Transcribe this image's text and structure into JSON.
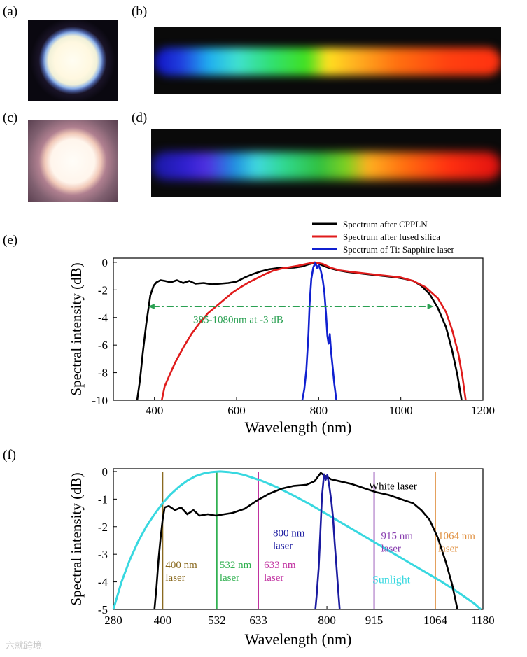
{
  "panels": {
    "a": "(a)",
    "b": "(b)",
    "c": "(c)",
    "d": "(d)",
    "e": "(e)",
    "f": "(f)"
  },
  "colors": {
    "cpp": "#000000",
    "fused": "#e01b1b",
    "ti": "#1020d0",
    "arrow": "#2aa052",
    "sun": "#38d8e0",
    "l400": "#8a6a20",
    "l532": "#30b050",
    "l633": "#c030a0",
    "l800": "#1a1aa0",
    "l915": "#8a40b0",
    "l1064": "#e09040"
  },
  "chart_data": [
    {
      "type": "line",
      "title": "",
      "xlabel": "Wavelength (nm)",
      "ylabel": "Spectral intensity (dB)",
      "xlim": [
        300,
        1200
      ],
      "ylim": [
        -10,
        0.3
      ],
      "xticks": [
        400,
        600,
        800,
        1000,
        1200
      ],
      "xtick_labels": [
        "400",
        "600",
        "800",
        "1000",
        "1200"
      ],
      "yticks": [
        0,
        -2,
        -4,
        -6,
        -8,
        -10
      ],
      "ytick_labels": [
        "0",
        "-2",
        "-4",
        "-6",
        "-8",
        "-10"
      ],
      "legend": [
        "Spectrum after  CPPLN",
        "Spectrum after fused silica",
        "Spectrum of Ti: Sapphire laser"
      ],
      "annotation": "385-1080nm at -3 dB",
      "arrow": {
        "x1": 385,
        "x2": 1080,
        "y": -3.2
      },
      "series": [
        {
          "name": "Spectrum after  CPPLN",
          "color_key": "cpp",
          "points": [
            [
              358,
              -10
            ],
            [
              365,
              -8.5
            ],
            [
              372,
              -6.5
            ],
            [
              380,
              -4.5
            ],
            [
              390,
              -2.4
            ],
            [
              398,
              -1.7
            ],
            [
              405,
              -1.45
            ],
            [
              415,
              -1.3
            ],
            [
              425,
              -1.35
            ],
            [
              440,
              -1.45
            ],
            [
              455,
              -1.3
            ],
            [
              470,
              -1.5
            ],
            [
              485,
              -1.35
            ],
            [
              500,
              -1.55
            ],
            [
              520,
              -1.5
            ],
            [
              540,
              -1.6
            ],
            [
              560,
              -1.55
            ],
            [
              580,
              -1.5
            ],
            [
              600,
              -1.4
            ],
            [
              620,
              -1.1
            ],
            [
              640,
              -0.85
            ],
            [
              660,
              -0.65
            ],
            [
              680,
              -0.5
            ],
            [
              700,
              -0.42
            ],
            [
              720,
              -0.4
            ],
            [
              740,
              -0.38
            ],
            [
              760,
              -0.3
            ],
            [
              775,
              -0.15
            ],
            [
              790,
              -0.05
            ],
            [
              800,
              -0.1
            ],
            [
              815,
              -0.3
            ],
            [
              830,
              -0.45
            ],
            [
              850,
              -0.6
            ],
            [
              870,
              -0.7
            ],
            [
              900,
              -0.8
            ],
            [
              930,
              -0.9
            ],
            [
              960,
              -1.0
            ],
            [
              990,
              -1.1
            ],
            [
              1010,
              -1.2
            ],
            [
              1030,
              -1.35
            ],
            [
              1050,
              -1.7
            ],
            [
              1070,
              -2.3
            ],
            [
              1090,
              -3.3
            ],
            [
              1110,
              -4.7
            ],
            [
              1125,
              -6.4
            ],
            [
              1138,
              -8.2
            ],
            [
              1148,
              -10
            ]
          ]
        },
        {
          "name": "Spectrum after fused silica",
          "color_key": "fused",
          "points": [
            [
              418,
              -10
            ],
            [
              425,
              -9.0
            ],
            [
              435,
              -8.3
            ],
            [
              450,
              -7.3
            ],
            [
              470,
              -6.2
            ],
            [
              490,
              -5.2
            ],
            [
              510,
              -4.4
            ],
            [
              530,
              -3.7
            ],
            [
              550,
              -3.2
            ],
            [
              570,
              -2.7
            ],
            [
              590,
              -2.2
            ],
            [
              610,
              -1.8
            ],
            [
              630,
              -1.45
            ],
            [
              650,
              -1.15
            ],
            [
              670,
              -0.85
            ],
            [
              690,
              -0.6
            ],
            [
              710,
              -0.45
            ],
            [
              730,
              -0.35
            ],
            [
              750,
              -0.25
            ],
            [
              770,
              -0.12
            ],
            [
              790,
              0.0
            ],
            [
              810,
              -0.12
            ],
            [
              830,
              -0.4
            ],
            [
              850,
              -0.58
            ],
            [
              880,
              -0.7
            ],
            [
              910,
              -0.8
            ],
            [
              940,
              -0.9
            ],
            [
              970,
              -1.0
            ],
            [
              1000,
              -1.1
            ],
            [
              1030,
              -1.35
            ],
            [
              1060,
              -1.8
            ],
            [
              1090,
              -2.6
            ],
            [
              1110,
              -3.6
            ],
            [
              1125,
              -4.9
            ],
            [
              1140,
              -6.6
            ],
            [
              1150,
              -8.3
            ],
            [
              1158,
              -10
            ]
          ]
        },
        {
          "name": "Spectrum of Ti: Sapphire laser",
          "color_key": "ti",
          "points": [
            [
              760,
              -10
            ],
            [
              765,
              -9.2
            ],
            [
              770,
              -7.8
            ],
            [
              775,
              -5.2
            ],
            [
              778,
              -3.0
            ],
            [
              782,
              -1.2
            ],
            [
              787,
              -0.35
            ],
            [
              792,
              -0.05
            ],
            [
              796,
              -0.4
            ],
            [
              800,
              -0.2
            ],
            [
              805,
              -0.6
            ],
            [
              810,
              -1.3
            ],
            [
              814,
              -2.2
            ],
            [
              818,
              -3.8
            ],
            [
              821,
              -5.3
            ],
            [
              824,
              -5.9
            ],
            [
              827,
              -5.2
            ],
            [
              830,
              -6.4
            ],
            [
              834,
              -7.6
            ],
            [
              838,
              -8.8
            ],
            [
              843,
              -10
            ]
          ]
        }
      ]
    },
    {
      "type": "line",
      "title": "",
      "xlabel": "Wavelength (nm)",
      "ylabel": "Spectral intensity (dB)",
      "xlim": [
        280,
        1180
      ],
      "ylim": [
        -5,
        0.1
      ],
      "xticks": [
        280,
        400,
        532,
        633,
        800,
        915,
        1064,
        1180
      ],
      "xtick_labels": [
        "280",
        "400",
        "532",
        "633",
        "800",
        "915",
        "1064",
        "1180"
      ],
      "yticks": [
        0,
        -1,
        -2,
        -3,
        -4,
        -5
      ],
      "ytick_labels": [
        "0",
        "-1",
        "-2",
        "-3",
        "-4",
        "-5"
      ],
      "series": [
        {
          "name": "Sunlight",
          "color_key": "sun",
          "points": [
            [
              280,
              -5.0
            ],
            [
              300,
              -4.0
            ],
            [
              320,
              -3.2
            ],
            [
              340,
              -2.55
            ],
            [
              360,
              -2.0
            ],
            [
              380,
              -1.55
            ],
            [
              400,
              -1.15
            ],
            [
              420,
              -0.82
            ],
            [
              440,
              -0.55
            ],
            [
              460,
              -0.33
            ],
            [
              480,
              -0.17
            ],
            [
              500,
              -0.07
            ],
            [
              520,
              -0.02
            ],
            [
              540,
              0.0
            ],
            [
              560,
              -0.02
            ],
            [
              580,
              -0.06
            ],
            [
              600,
              -0.13
            ],
            [
              640,
              -0.33
            ],
            [
              680,
              -0.58
            ],
            [
              720,
              -0.88
            ],
            [
              760,
              -1.2
            ],
            [
              800,
              -1.55
            ],
            [
              840,
              -1.9
            ],
            [
              880,
              -2.25
            ],
            [
              920,
              -2.6
            ],
            [
              960,
              -2.95
            ],
            [
              1000,
              -3.3
            ],
            [
              1040,
              -3.65
            ],
            [
              1080,
              -4.0
            ],
            [
              1120,
              -4.38
            ],
            [
              1160,
              -4.8
            ],
            [
              1175,
              -5.0
            ]
          ]
        },
        {
          "name": "White laser",
          "color_key": "cpp",
          "points": [
            [
              380,
              -5.0
            ],
            [
              385,
              -4.2
            ],
            [
              390,
              -3.2
            ],
            [
              395,
              -2.4
            ],
            [
              400,
              -1.75
            ],
            [
              405,
              -1.3
            ],
            [
              415,
              -1.25
            ],
            [
              430,
              -1.4
            ],
            [
              445,
              -1.3
            ],
            [
              460,
              -1.55
            ],
            [
              475,
              -1.4
            ],
            [
              490,
              -1.6
            ],
            [
              510,
              -1.55
            ],
            [
              530,
              -1.6
            ],
            [
              550,
              -1.55
            ],
            [
              570,
              -1.5
            ],
            [
              600,
              -1.35
            ],
            [
              630,
              -1.05
            ],
            [
              660,
              -0.8
            ],
            [
              690,
              -0.62
            ],
            [
              720,
              -0.52
            ],
            [
              750,
              -0.48
            ],
            [
              770,
              -0.35
            ],
            [
              785,
              -0.05
            ],
            [
              795,
              -0.15
            ],
            [
              810,
              -0.28
            ],
            [
              830,
              -0.35
            ],
            [
              860,
              -0.45
            ],
            [
              890,
              -0.6
            ],
            [
              920,
              -0.75
            ],
            [
              950,
              -0.85
            ],
            [
              980,
              -1.0
            ],
            [
              1010,
              -1.15
            ],
            [
              1030,
              -1.4
            ],
            [
              1050,
              -1.75
            ],
            [
              1070,
              -2.4
            ],
            [
              1090,
              -3.3
            ],
            [
              1105,
              -4.1
            ],
            [
              1118,
              -5.0
            ]
          ]
        },
        {
          "name": "800 nm laser",
          "color_key": "l800",
          "points": [
            [
              772,
              -5.0
            ],
            [
              775,
              -4.5
            ],
            [
              780,
              -3.5
            ],
            [
              784,
              -2.2
            ],
            [
              788,
              -0.9
            ],
            [
              793,
              -0.1
            ],
            [
              797,
              -0.3
            ],
            [
              801,
              -0.12
            ],
            [
              806,
              -0.55
            ],
            [
              811,
              -1.1
            ],
            [
              815,
              -1.7
            ],
            [
              819,
              -2.6
            ],
            [
              823,
              -3.4
            ],
            [
              827,
              -4.2
            ],
            [
              831,
              -5.0
            ]
          ]
        }
      ],
      "lasers": [
        {
          "wavelength": 400,
          "label1": "400 nm",
          "label2": "laser",
          "color_key": "l400"
        },
        {
          "wavelength": 532,
          "label1": "532 nm",
          "label2": "laser",
          "color_key": "l532"
        },
        {
          "wavelength": 633,
          "label1": "633 nm",
          "label2": "laser",
          "color_key": "l633"
        },
        {
          "wavelength": 915,
          "label1": "915 nm",
          "label2": "laser",
          "color_key": "l915"
        },
        {
          "wavelength": 1064,
          "label1": "1064 nm",
          "label2": "laser",
          "color_key": "l1064"
        }
      ],
      "labels": {
        "white": "White laser",
        "sun": "Sunlight",
        "l800_1": "800 nm",
        "l800_2": "laser"
      }
    }
  ],
  "watermark": "六就跨境"
}
